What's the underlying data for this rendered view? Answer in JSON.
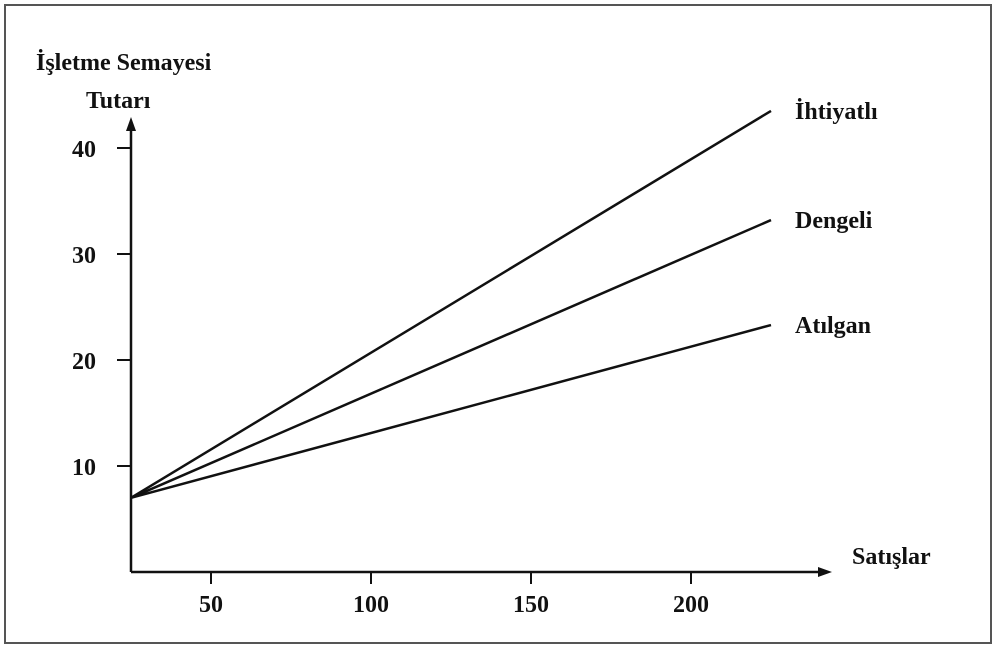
{
  "colors": {
    "line": "#111111",
    "axis": "#111111",
    "frame": "#555555",
    "background": "#ffffff"
  },
  "chart_data": {
    "type": "line",
    "ylabel_line1": "İşletme Semayesi",
    "ylabel_line2": "Tutarı",
    "xlabel": "Satışlar",
    "xlim": [
      25,
      250
    ],
    "ylim": [
      0,
      52
    ],
    "xticks": [
      50,
      100,
      150,
      200
    ],
    "yticks": [
      10,
      20,
      30,
      40
    ],
    "grid": false,
    "legend": "none",
    "series": [
      {
        "name": "İhtiyatlı",
        "x": [
          25,
          225
        ],
        "y": [
          7,
          43.5
        ]
      },
      {
        "name": "Dengeli",
        "x": [
          25,
          225
        ],
        "y": [
          7,
          33.2
        ]
      },
      {
        "name": "Atılgan",
        "x": [
          25,
          225
        ],
        "y": [
          7,
          23.3
        ]
      }
    ]
  }
}
